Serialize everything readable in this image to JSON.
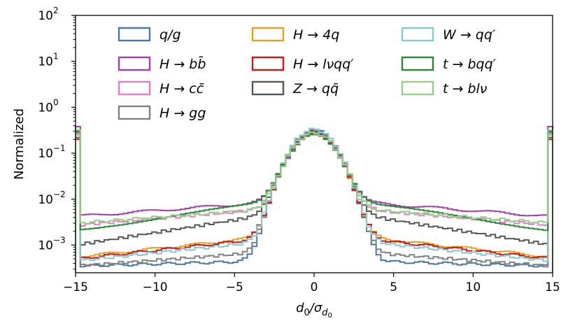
{
  "chart_data": {
    "type": "line",
    "drawstyle": "steps",
    "title": "",
    "xlabel": "d₀/σd₀",
    "xlabel_parts": {
      "main": "d",
      "main_sub": "0",
      "sep": "/σ",
      "denom_sub": "d",
      "denom_subsub": "0"
    },
    "ylabel": "Normalized",
    "xlim": [
      -15,
      15
    ],
    "ylim": [
      0.00025,
      100
    ],
    "yscale": "log",
    "grid": false,
    "legend": "top",
    "xticks": [
      -15,
      -10,
      -5,
      0,
      5,
      10,
      15
    ],
    "xtick_labels": [
      "−15",
      "−10",
      "−5",
      "0",
      "5",
      "10",
      "15"
    ],
    "yticks": [
      {
        "value": 0.001,
        "base": "10",
        "exp": "−3"
      },
      {
        "value": 0.01,
        "base": "10",
        "exp": "−2"
      },
      {
        "value": 0.1,
        "base": "10",
        "exp": "−1"
      },
      {
        "value": 1,
        "base": "10",
        "exp": "0"
      },
      {
        "value": 10,
        "base": "10",
        "exp": "1"
      },
      {
        "value": 100,
        "base": "10",
        "exp": "2"
      }
    ],
    "series": [
      {
        "name": "q/g",
        "color": "#4878a8",
        "edge": 0.3,
        "tail_inner": 0.00045,
        "tail_outer": 0.00035,
        "core": 0.32
      },
      {
        "name": "H → bb̄",
        "color": "#a040a8",
        "edge": 0.38,
        "tail_inner": 0.0085,
        "tail_outer": 0.0042,
        "core": 0.25
      },
      {
        "name": "H → cc̄",
        "color": "#e87ac8",
        "edge": 0.28,
        "tail_inner": 0.006,
        "tail_outer": 0.0027,
        "core": 0.28
      },
      {
        "name": "H → gg",
        "color": "#808080",
        "edge": 0.28,
        "tail_inner": 0.0007,
        "tail_outer": 0.00035,
        "core": 0.31
      },
      {
        "name": "H → 4q",
        "color": "#e8a020",
        "edge": 0.25,
        "tail_inner": 0.0015,
        "tail_outer": 0.00055,
        "core": 0.28
      },
      {
        "name": "H → lνqq′",
        "color": "#c81818",
        "edge": 0.2,
        "tail_inner": 0.0014,
        "tail_outer": 0.0005,
        "core": 0.29
      },
      {
        "name": "Z → qq̄",
        "color": "#505a50",
        "edge": 0.22,
        "tail_inner": 0.0045,
        "tail_outer": 0.001,
        "core": 0.28
      },
      {
        "name": "W → qq′",
        "color": "#88c8d0",
        "edge": 0.26,
        "tail_inner": 0.0012,
        "tail_outer": 0.00045,
        "core": 0.33
      },
      {
        "name": "t → bqq′",
        "color": "#288838",
        "edge": 0.3,
        "tail_inner": 0.0085,
        "tail_outer": 0.0021,
        "core": 0.26
      },
      {
        "name": "t → blν",
        "color": "#98cc88",
        "edge": 0.32,
        "tail_inner": 0.006,
        "tail_outer": 0.003,
        "core": 0.27
      }
    ]
  }
}
